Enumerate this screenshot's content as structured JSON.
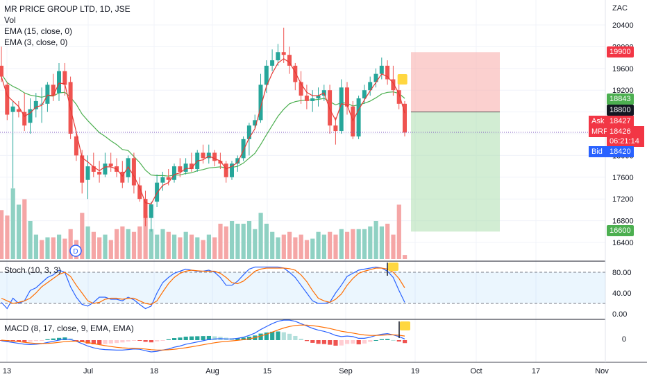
{
  "header": {
    "symbol_line": "MR PRICE GROUP LTD, 1D, JSE",
    "vol_label": "Vol",
    "ema1_label": "EMA (15, close, 0)",
    "ema2_label": "EMA (3, close, 0)",
    "stoch_label": "Stoch (10, 3, 3)",
    "macd_label": "MACD (8, 17, close, 9, EMA, EMA)",
    "dividend_marker": "D"
  },
  "price_axis": {
    "currency": "ZAC",
    "ticks": [
      "20400",
      "20000",
      "19600",
      "19200",
      "18800",
      "18400",
      "18000",
      "17600",
      "17200",
      "16800",
      "16400"
    ]
  },
  "price_tags": {
    "target": "19900",
    "ema_fast": "18843",
    "entry": "18800",
    "ask_label": "Ask",
    "ask_value": "18427",
    "mrp_label": "MRP",
    "mrp_value": "18426",
    "countdown": "06:21:14",
    "bid_label": "Bid",
    "bid_value": "18420",
    "stop": "16600"
  },
  "stoch_axis": {
    "ticks": [
      "80.00",
      "40.00",
      "0.00"
    ]
  },
  "macd_axis": {
    "ticks": [
      "0"
    ]
  },
  "time_axis": {
    "ticks": [
      "13",
      "Jul",
      "18",
      "Aug",
      "15",
      "Sep",
      "19",
      "Oct",
      "17",
      "Nov"
    ]
  },
  "chart_data": {
    "type": "candlestick",
    "title": "MR PRICE GROUP LTD, 1D, JSE",
    "currency": "ZAC",
    "ylim": [
      16200,
      20650
    ],
    "candles": [
      {
        "d": 1,
        "o": 19650,
        "h": 20000,
        "l": 19350,
        "c": 19450
      },
      {
        "d": 2,
        "o": 19300,
        "h": 19350,
        "l": 18650,
        "c": 18750
      },
      {
        "d": 3,
        "o": 18800,
        "h": 19000,
        "l": 17400,
        "c": 18900
      },
      {
        "d": 4,
        "o": 18850,
        "h": 19000,
        "l": 18700,
        "c": 18800
      },
      {
        "d": 5,
        "o": 18800,
        "h": 19150,
        "l": 18450,
        "c": 18550
      },
      {
        "d": 6,
        "o": 18600,
        "h": 19050,
        "l": 18400,
        "c": 18850
      },
      {
        "d": 7,
        "o": 18850,
        "h": 19150,
        "l": 18700,
        "c": 19000
      },
      {
        "d": 8,
        "o": 18950,
        "h": 19250,
        "l": 18600,
        "c": 18950
      },
      {
        "d": 9,
        "o": 18950,
        "h": 19350,
        "l": 18800,
        "c": 19300
      },
      {
        "d": 10,
        "o": 19300,
        "h": 19500,
        "l": 19000,
        "c": 19100
      },
      {
        "d": 11,
        "o": 19150,
        "h": 19700,
        "l": 19000,
        "c": 19550
      },
      {
        "d": 12,
        "o": 19550,
        "h": 19700,
        "l": 19100,
        "c": 19300
      },
      {
        "d": 13,
        "o": 19350,
        "h": 19450,
        "l": 18300,
        "c": 18400
      },
      {
        "d": 14,
        "o": 18350,
        "h": 18450,
        "l": 17900,
        "c": 18000
      },
      {
        "d": 15,
        "o": 18000,
        "h": 18100,
        "l": 17300,
        "c": 17500
      },
      {
        "d": 16,
        "o": 17550,
        "h": 18000,
        "l": 17200,
        "c": 17800
      },
      {
        "d": 17,
        "o": 17800,
        "h": 18050,
        "l": 17600,
        "c": 17700
      },
      {
        "d": 18,
        "o": 17700,
        "h": 17900,
        "l": 17500,
        "c": 17650
      },
      {
        "d": 19,
        "o": 17650,
        "h": 18050,
        "l": 17600,
        "c": 17850
      },
      {
        "d": 20,
        "o": 17850,
        "h": 18050,
        "l": 17700,
        "c": 17800
      },
      {
        "d": 21,
        "o": 17800,
        "h": 17950,
        "l": 17600,
        "c": 17700
      },
      {
        "d": 22,
        "o": 17700,
        "h": 17900,
        "l": 17400,
        "c": 17500
      },
      {
        "d": 23,
        "o": 17600,
        "h": 18000,
        "l": 17500,
        "c": 17950
      },
      {
        "d": 24,
        "o": 17950,
        "h": 18050,
        "l": 17300,
        "c": 17450
      },
      {
        "d": 25,
        "o": 17450,
        "h": 17600,
        "l": 17150,
        "c": 17200
      },
      {
        "d": 26,
        "o": 17200,
        "h": 17350,
        "l": 16700,
        "c": 16850
      },
      {
        "d": 27,
        "o": 16850,
        "h": 17150,
        "l": 16600,
        "c": 17100
      },
      {
        "d": 28,
        "o": 17150,
        "h": 17650,
        "l": 17050,
        "c": 17500
      },
      {
        "d": 29,
        "o": 17500,
        "h": 17700,
        "l": 17350,
        "c": 17600
      },
      {
        "d": 30,
        "o": 17600,
        "h": 17750,
        "l": 17450,
        "c": 17550
      },
      {
        "d": 31,
        "o": 17550,
        "h": 17850,
        "l": 17500,
        "c": 17800
      },
      {
        "d": 32,
        "o": 17800,
        "h": 17950,
        "l": 17600,
        "c": 17700
      },
      {
        "d": 33,
        "o": 17700,
        "h": 17950,
        "l": 17650,
        "c": 17850
      },
      {
        "d": 34,
        "o": 17850,
        "h": 18050,
        "l": 17700,
        "c": 17750
      },
      {
        "d": 35,
        "o": 17750,
        "h": 18100,
        "l": 17700,
        "c": 18050
      },
      {
        "d": 36,
        "o": 18050,
        "h": 18200,
        "l": 17850,
        "c": 17950
      },
      {
        "d": 37,
        "o": 17950,
        "h": 18200,
        "l": 17850,
        "c": 18050
      },
      {
        "d": 38,
        "o": 18050,
        "h": 18100,
        "l": 17800,
        "c": 17900
      },
      {
        "d": 39,
        "o": 17900,
        "h": 18050,
        "l": 17750,
        "c": 17850
      },
      {
        "d": 40,
        "o": 17850,
        "h": 17900,
        "l": 17500,
        "c": 17600
      },
      {
        "d": 41,
        "o": 17600,
        "h": 17900,
        "l": 17550,
        "c": 17850
      },
      {
        "d": 42,
        "o": 17850,
        "h": 18000,
        "l": 17700,
        "c": 17950
      },
      {
        "d": 43,
        "o": 17950,
        "h": 18350,
        "l": 17900,
        "c": 18300
      },
      {
        "d": 44,
        "o": 18300,
        "h": 18600,
        "l": 18000,
        "c": 18550
      },
      {
        "d": 45,
        "o": 18550,
        "h": 18750,
        "l": 18500,
        "c": 18650
      },
      {
        "d": 46,
        "o": 18650,
        "h": 19500,
        "l": 18600,
        "c": 19300
      },
      {
        "d": 47,
        "o": 19300,
        "h": 19750,
        "l": 19150,
        "c": 19650
      },
      {
        "d": 48,
        "o": 19650,
        "h": 19950,
        "l": 19550,
        "c": 19750
      },
      {
        "d": 49,
        "o": 19750,
        "h": 20050,
        "l": 19650,
        "c": 19900
      },
      {
        "d": 50,
        "o": 19900,
        "h": 20350,
        "l": 19700,
        "c": 19850
      },
      {
        "d": 51,
        "o": 19850,
        "h": 20000,
        "l": 19500,
        "c": 19650
      },
      {
        "d": 52,
        "o": 19650,
        "h": 19700,
        "l": 19200,
        "c": 19350
      },
      {
        "d": 53,
        "o": 19350,
        "h": 19550,
        "l": 18950,
        "c": 19100
      },
      {
        "d": 54,
        "o": 19100,
        "h": 19300,
        "l": 18850,
        "c": 19000
      },
      {
        "d": 55,
        "o": 19000,
        "h": 19200,
        "l": 18800,
        "c": 19050
      },
      {
        "d": 56,
        "o": 19050,
        "h": 19250,
        "l": 18900,
        "c": 19100
      },
      {
        "d": 57,
        "o": 19100,
        "h": 19300,
        "l": 19000,
        "c": 19200
      },
      {
        "d": 58,
        "o": 19200,
        "h": 19300,
        "l": 18400,
        "c": 18550
      },
      {
        "d": 59,
        "o": 18550,
        "h": 18700,
        "l": 18200,
        "c": 18450
      },
      {
        "d": 60,
        "o": 18450,
        "h": 19400,
        "l": 18400,
        "c": 19250
      },
      {
        "d": 61,
        "o": 19250,
        "h": 19350,
        "l": 18750,
        "c": 18900
      },
      {
        "d": 62,
        "o": 18900,
        "h": 19000,
        "l": 18300,
        "c": 18350
      },
      {
        "d": 63,
        "o": 18350,
        "h": 19100,
        "l": 18300,
        "c": 19050
      },
      {
        "d": 64,
        "o": 19050,
        "h": 19300,
        "l": 18950,
        "c": 19200
      },
      {
        "d": 65,
        "o": 19200,
        "h": 19450,
        "l": 19100,
        "c": 19350
      },
      {
        "d": 66,
        "o": 19350,
        "h": 19600,
        "l": 19250,
        "c": 19500
      },
      {
        "d": 67,
        "o": 19500,
        "h": 19800,
        "l": 19400,
        "c": 19650
      },
      {
        "d": 68,
        "o": 19650,
        "h": 19750,
        "l": 19300,
        "c": 19400
      },
      {
        "d": 69,
        "o": 19400,
        "h": 19650,
        "l": 19100,
        "c": 19200
      },
      {
        "d": 70,
        "o": 19200,
        "h": 19350,
        "l": 18850,
        "c": 18950
      },
      {
        "d": 71,
        "o": 18950,
        "h": 19000,
        "l": 18350,
        "c": 18420
      }
    ],
    "ema_fast": [
      19500,
      19340,
      19270,
      19220,
      19150,
      19110,
      19090,
      19070,
      19100,
      19090,
      19150,
      19160,
      19070,
      18940,
      18760,
      18640,
      18530,
      18420,
      18350,
      18270,
      18200,
      18110,
      18090,
      17980,
      17870,
      17730,
      17640,
      17630,
      17630,
      17620,
      17640,
      17640,
      17670,
      17680,
      17720,
      17740,
      17770,
      17780,
      17790,
      17770,
      17780,
      17800,
      17860,
      17950,
      18040,
      18200,
      18380,
      18550,
      18720,
      18850,
      18950,
      18990,
      19010,
      19020,
      19020,
      19030,
      19050,
      18990,
      18930,
      18970,
      18960,
      18910,
      18930,
      18960,
      19000,
      19060,
      19130,
      19160,
      19170,
      19140,
      19050
    ],
    "ema_slow": [
      19450,
      19100,
      19000,
      18900,
      18720,
      18780,
      18890,
      18920,
      19110,
      19100,
      19330,
      19320,
      18860,
      18430,
      17960,
      17880,
      17790,
      17720,
      17790,
      17790,
      17750,
      17620,
      17790,
      17620,
      17410,
      17130,
      17110,
      17310,
      17450,
      17500,
      17650,
      17680,
      17760,
      17760,
      17900,
      17920,
      17990,
      17940,
      17900,
      17750,
      17800,
      17870,
      18090,
      18320,
      18490,
      18890,
      19270,
      19510,
      19700,
      19780,
      19710,
      19530,
      19320,
      19160,
      19100,
      19100,
      19150,
      18850,
      18650,
      18950,
      18930,
      18640,
      18840,
      19020,
      19190,
      19340,
      19500,
      19450,
      19330,
      19140,
      18780
    ],
    "volume": [
      {
        "v": 180,
        "up": false
      },
      {
        "v": 160,
        "up": false
      },
      {
        "v": 260,
        "up": true
      },
      {
        "v": 200,
        "up": true
      },
      {
        "v": 220,
        "up": false
      },
      {
        "v": 140,
        "up": true
      },
      {
        "v": 90,
        "up": true
      },
      {
        "v": 70,
        "up": false
      },
      {
        "v": 80,
        "up": true
      },
      {
        "v": 80,
        "up": false
      },
      {
        "v": 90,
        "up": true
      },
      {
        "v": 75,
        "up": false
      },
      {
        "v": 110,
        "up": false
      },
      {
        "v": 70,
        "up": false
      },
      {
        "v": 170,
        "up": false
      },
      {
        "v": 120,
        "up": true
      },
      {
        "v": 100,
        "up": false
      },
      {
        "v": 80,
        "up": false
      },
      {
        "v": 90,
        "up": true
      },
      {
        "v": 70,
        "up": false
      },
      {
        "v": 110,
        "up": false
      },
      {
        "v": 120,
        "up": false
      },
      {
        "v": 110,
        "up": true
      },
      {
        "v": 100,
        "up": false
      },
      {
        "v": 120,
        "up": false
      },
      {
        "v": 160,
        "up": false
      },
      {
        "v": 110,
        "up": true
      },
      {
        "v": 90,
        "up": true
      },
      {
        "v": 110,
        "up": true
      },
      {
        "v": 100,
        "up": false
      },
      {
        "v": 90,
        "up": true
      },
      {
        "v": 80,
        "up": false
      },
      {
        "v": 100,
        "up": true
      },
      {
        "v": 90,
        "up": false
      },
      {
        "v": 80,
        "up": true
      },
      {
        "v": 70,
        "up": false
      },
      {
        "v": 90,
        "up": true
      },
      {
        "v": 80,
        "up": false
      },
      {
        "v": 130,
        "up": false
      },
      {
        "v": 120,
        "up": false
      },
      {
        "v": 140,
        "up": true
      },
      {
        "v": 130,
        "up": true
      },
      {
        "v": 130,
        "up": true
      },
      {
        "v": 140,
        "up": true
      },
      {
        "v": 110,
        "up": true
      },
      {
        "v": 170,
        "up": true
      },
      {
        "v": 130,
        "up": true
      },
      {
        "v": 100,
        "up": true
      },
      {
        "v": 80,
        "up": true
      },
      {
        "v": 90,
        "up": false
      },
      {
        "v": 100,
        "up": false
      },
      {
        "v": 80,
        "up": false
      },
      {
        "v": 90,
        "up": false
      },
      {
        "v": 70,
        "up": false
      },
      {
        "v": 75,
        "up": true
      },
      {
        "v": 100,
        "up": true
      },
      {
        "v": 90,
        "up": true
      },
      {
        "v": 100,
        "up": false
      },
      {
        "v": 90,
        "up": false
      },
      {
        "v": 110,
        "up": true
      },
      {
        "v": 100,
        "up": false
      },
      {
        "v": 110,
        "up": false
      },
      {
        "v": 110,
        "up": true
      },
      {
        "v": 110,
        "up": true
      },
      {
        "v": 120,
        "up": true
      },
      {
        "v": 140,
        "up": true
      },
      {
        "v": 120,
        "up": true
      },
      {
        "v": 130,
        "up": false
      },
      {
        "v": 90,
        "up": false
      },
      {
        "v": 200,
        "up": false
      },
      {
        "v": 15,
        "up": false
      }
    ],
    "position": {
      "entry": 18800,
      "target": 19900,
      "stop": 16600
    },
    "current_price": 18426,
    "stoch": {
      "ylim": [
        0,
        100
      ],
      "levels": [
        80,
        20
      ],
      "k": [
        22,
        10,
        30,
        20,
        25,
        45,
        50,
        60,
        70,
        75,
        84,
        80,
        52,
        32,
        18,
        15,
        22,
        32,
        32,
        28,
        28,
        25,
        32,
        27,
        18,
        10,
        15,
        40,
        60,
        70,
        78,
        82,
        86,
        84,
        82,
        82,
        84,
        80,
        70,
        55,
        55,
        63,
        75,
        86,
        90,
        90,
        90,
        90,
        90,
        88,
        80,
        70,
        55,
        40,
        25,
        20,
        20,
        22,
        40,
        55,
        72,
        78,
        84,
        86,
        88,
        90,
        88,
        82,
        70,
        45,
        22
      ],
      "d": [
        30,
        25,
        20,
        22,
        25,
        30,
        40,
        52,
        60,
        68,
        76,
        80,
        72,
        55,
        40,
        25,
        20,
        22,
        28,
        30,
        30,
        28,
        30,
        30,
        25,
        20,
        18,
        25,
        42,
        58,
        70,
        78,
        82,
        84,
        83,
        82,
        82,
        82,
        78,
        70,
        60,
        58,
        63,
        72,
        82,
        86,
        88,
        88,
        88,
        88,
        87,
        84,
        75,
        62,
        45,
        30,
        25,
        22,
        28,
        38,
        55,
        68,
        78,
        82,
        85,
        88,
        88,
        86,
        80,
        68,
        50
      ]
    },
    "macd": {
      "macd": [
        -10,
        -25,
        -40,
        -55,
        -70,
        -75,
        -70,
        -60,
        -40,
        -20,
        0,
        20,
        10,
        -20,
        -60,
        -100,
        -130,
        -150,
        -160,
        -165,
        -170,
        -170,
        -160,
        -150,
        -155,
        -180,
        -200,
        -190,
        -170,
        -150,
        -120,
        -100,
        -70,
        -50,
        -30,
        -10,
        10,
        20,
        25,
        20,
        20,
        30,
        50,
        80,
        120,
        180,
        230,
        280,
        320,
        340,
        340,
        320,
        280,
        240,
        200,
        170,
        150,
        120,
        80,
        60,
        70,
        60,
        30,
        30,
        50,
        80,
        100,
        110,
        90,
        60,
        20
      ],
      "signal": [
        0,
        -8,
        -16,
        -26,
        -38,
        -48,
        -56,
        -58,
        -55,
        -48,
        -38,
        -26,
        -18,
        -18,
        -26,
        -41,
        -59,
        -77,
        -94,
        -108,
        -121,
        -131,
        -137,
        -140,
        -143,
        -151,
        -162,
        -168,
        -168,
        -164,
        -155,
        -144,
        -129,
        -113,
        -96,
        -79,
        -61,
        -45,
        -31,
        -21,
        -13,
        -4,
        7,
        22,
        41,
        69,
        101,
        137,
        173,
        206,
        232,
        249,
        256,
        255,
        246,
        233,
        217,
        198,
        174,
        151,
        135,
        120,
        102,
        88,
        80,
        80,
        84,
        89,
        89,
        83,
        70
      ],
      "hist": [
        -10,
        -17,
        -24,
        -29,
        -32,
        -27,
        -14,
        -2,
        15,
        28,
        38,
        46,
        28,
        -2,
        -34,
        -59,
        -71,
        -73,
        -66,
        -57,
        -49,
        -39,
        -23,
        -10,
        -12,
        -29,
        -38,
        -22,
        -2,
        14,
        35,
        44,
        59,
        63,
        66,
        69,
        71,
        65,
        56,
        41,
        33,
        34,
        43,
        58,
        79,
        111,
        129,
        143,
        147,
        134,
        108,
        71,
        24,
        -15,
        -46,
        -63,
        -67,
        -78,
        -94,
        -91,
        -65,
        -60,
        -72,
        -58,
        -30,
        0,
        16,
        21,
        1,
        -23,
        -50
      ]
    }
  }
}
